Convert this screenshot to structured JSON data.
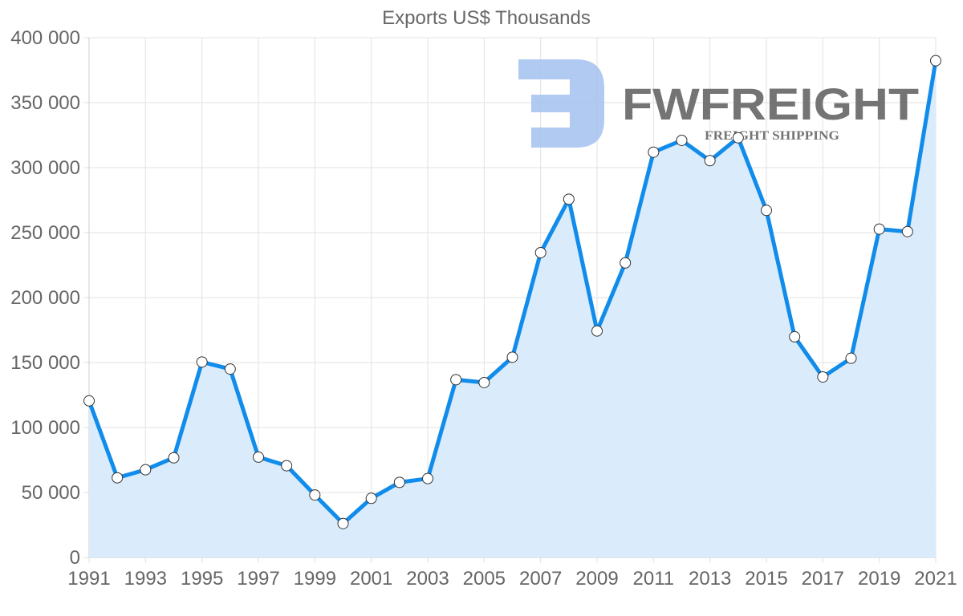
{
  "chart_data": {
    "type": "area",
    "title": "Exports US$ Thousands",
    "xlabel": "",
    "ylabel": "",
    "x": [
      1991,
      1992,
      1993,
      1994,
      1995,
      1996,
      1997,
      1998,
      1999,
      2000,
      2001,
      2002,
      2003,
      2004,
      2005,
      2006,
      2007,
      2008,
      2009,
      2010,
      2011,
      2012,
      2013,
      2014,
      2015,
      2016,
      2017,
      2018,
      2019,
      2020,
      2021
    ],
    "series": [
      {
        "name": "Exports US$ Thousands",
        "values": [
          120500,
          61300,
          67500,
          76700,
          150400,
          145000,
          77200,
          70600,
          48100,
          26100,
          45500,
          57800,
          60700,
          136800,
          134600,
          154100,
          234600,
          275700,
          174300,
          226700,
          311900,
          321000,
          305400,
          323000,
          267100,
          169800,
          138900,
          153300,
          252700,
          250800,
          382300
        ]
      }
    ],
    "ylim": [
      0,
      400000
    ],
    "xlim": [
      1991,
      2021
    ],
    "y_ticks": [
      0,
      50000,
      100000,
      150000,
      200000,
      250000,
      300000,
      350000,
      400000
    ],
    "y_tick_labels": [
      "0",
      "50 000",
      "100 000",
      "150 000",
      "200 000",
      "250 000",
      "300 000",
      "350 000",
      "400 000"
    ],
    "x_ticks": [
      1991,
      1993,
      1995,
      1997,
      1999,
      2001,
      2003,
      2005,
      2007,
      2009,
      2011,
      2013,
      2015,
      2017,
      2019,
      2021
    ],
    "x_tick_labels": [
      "1991",
      "1993",
      "1995",
      "1997",
      "1999",
      "2001",
      "2003",
      "2005",
      "2007",
      "2009",
      "2011",
      "2013",
      "2015",
      "2017",
      "2019",
      "2021"
    ],
    "grid": true,
    "legend": null,
    "colors": {
      "line": "#118ceb",
      "fill": "#d8ebfc",
      "point_fill": "#ffffff",
      "point_stroke": "#333333",
      "grid": "#e2e2e2",
      "text": "#666666"
    }
  },
  "watermark": {
    "brand": "FWFREIGHT",
    "tagline": "FREIGHT SHIPPING",
    "color": "#a9c4f0"
  }
}
